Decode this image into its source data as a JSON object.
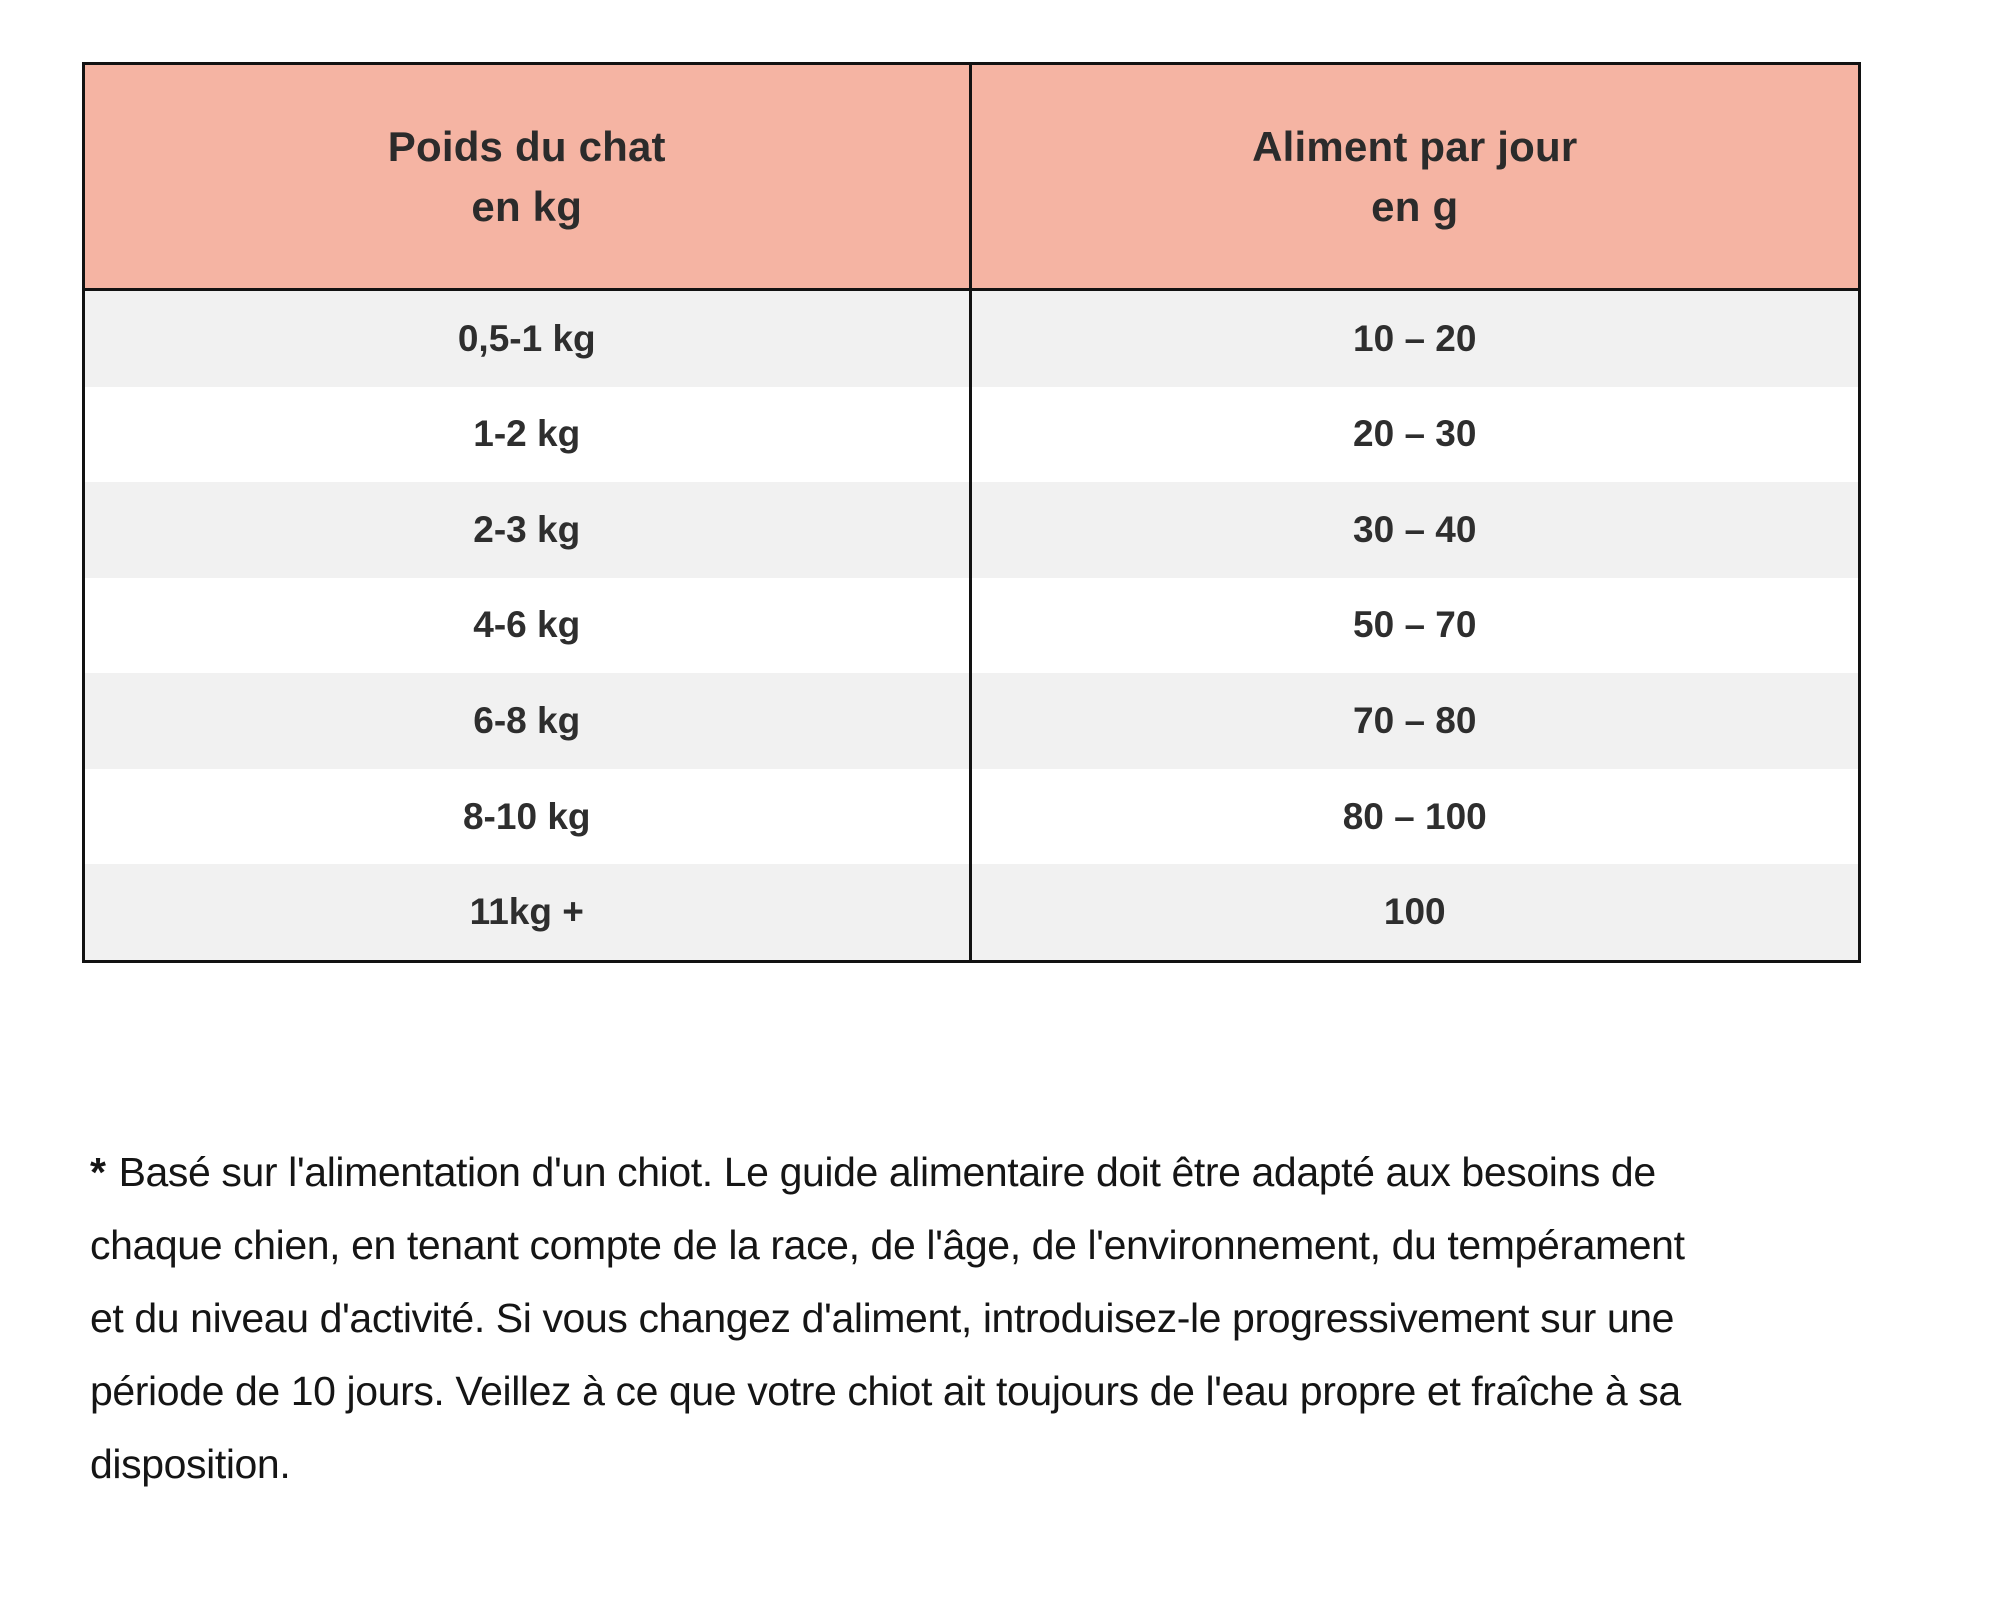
{
  "table": {
    "header": {
      "weight": {
        "line1": "Poids du chat",
        "line2": "en kg"
      },
      "food": {
        "line1": "Aliment par jour",
        "line2": "en g"
      }
    },
    "rows": [
      {
        "weight": "0,5-1 kg",
        "food": "10 – 20"
      },
      {
        "weight": "1-2 kg",
        "food": "20 – 30"
      },
      {
        "weight": "2-3 kg",
        "food": "30 – 40"
      },
      {
        "weight": "4-6 kg",
        "food": "50 – 70"
      },
      {
        "weight": "6-8 kg",
        "food": "70 – 80"
      },
      {
        "weight": "8-10 kg",
        "food": "80 – 100"
      },
      {
        "weight": "11kg +",
        "food": "100"
      }
    ],
    "colors": {
      "header_bg": "#f5b4a3",
      "alt_row_bg": "#f1f1f1",
      "row_bg": "#ffffff",
      "border": "#121212",
      "text": "#2e2e2e"
    }
  },
  "footnote": {
    "marker": "*",
    "lines": [
      "Basé sur l'alimentation d'un chiot. Le guide alimentaire doit être adapté aux besoins de",
      "chaque chien, en tenant compte de la race, de l'âge, de l'environnement, du tempérament",
      "et du niveau d'activité. Si vous changez d'aliment, introduisez-le progressivement sur une",
      "période de 10 jours. Veillez à ce que votre chiot ait toujours de l'eau propre et fraîche à sa",
      "disposition."
    ]
  }
}
